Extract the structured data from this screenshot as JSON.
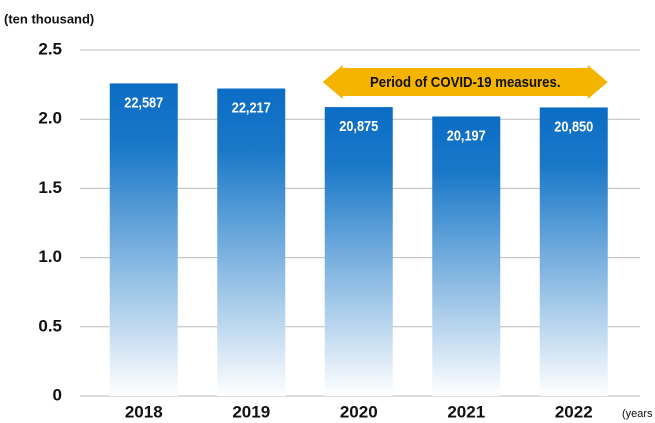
{
  "chart_data": {
    "type": "bar",
    "y_axis_label": "(ten thousand)",
    "x_axis_label": "(years",
    "annotation": "Period of COVID-19 measures.",
    "annotation_span": [
      "2020",
      "2022"
    ],
    "categories": [
      "2018",
      "2019",
      "2020",
      "2021",
      "2022"
    ],
    "values": [
      2.2587,
      2.2217,
      2.0875,
      2.0197,
      2.085
    ],
    "value_labels": [
      "22,587",
      "22,217",
      "20,875",
      "20,197",
      "20,850"
    ],
    "color": "#0a6cc4",
    "ylim": [
      0,
      2.5
    ],
    "yticks": [
      0,
      0.5,
      {
        "value": 1,
        "label": "1.0"
      },
      1.5,
      {
        "value": 2,
        "label": "2.0"
      },
      2.5
    ],
    "grid": true
  }
}
